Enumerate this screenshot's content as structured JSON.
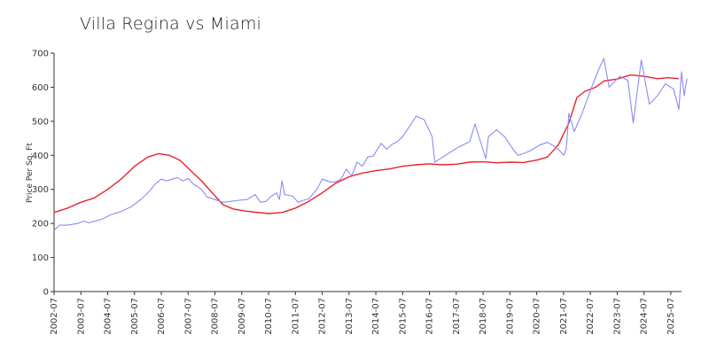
{
  "chart_data": {
    "type": "line",
    "title": "Villa Regina vs Miami",
    "xlabel": "",
    "ylabel": "Price Per Sq. Ft",
    "ylim": [
      0,
      700
    ],
    "yticks": [
      0,
      100,
      200,
      300,
      400,
      500,
      600,
      700
    ],
    "xlim": [
      2002.5,
      2025.9
    ],
    "xticks": [
      "2002-07",
      "2003-07",
      "2004-07",
      "2005-07",
      "2006-07",
      "2007-07",
      "2008-07",
      "2009-07",
      "2010-07",
      "2011-07",
      "2012-07",
      "2013-07",
      "2014-07",
      "2015-07",
      "2016-07",
      "2017-07",
      "2018-07",
      "2019-07",
      "2020-07",
      "2021-07",
      "2022-07",
      "2023-07",
      "2024-07",
      "2025-07"
    ],
    "grid": false,
    "legend": "none",
    "series": [
      {
        "name": "",
        "color": "#e8232b",
        "points": [
          [
            2002.5,
            232
          ],
          [
            2003.0,
            245
          ],
          [
            2003.5,
            262
          ],
          [
            2004.0,
            275
          ],
          [
            2004.5,
            300
          ],
          [
            2005.0,
            330
          ],
          [
            2005.5,
            368
          ],
          [
            2006.0,
            395
          ],
          [
            2006.4,
            405
          ],
          [
            2006.8,
            400
          ],
          [
            2007.2,
            385
          ],
          [
            2007.6,
            355
          ],
          [
            2008.0,
            325
          ],
          [
            2008.4,
            290
          ],
          [
            2008.8,
            255
          ],
          [
            2009.2,
            242
          ],
          [
            2009.6,
            237
          ],
          [
            2010.0,
            233
          ],
          [
            2010.5,
            229
          ],
          [
            2011.0,
            232
          ],
          [
            2011.5,
            245
          ],
          [
            2012.0,
            265
          ],
          [
            2012.5,
            290
          ],
          [
            2013.0,
            318
          ],
          [
            2013.5,
            337
          ],
          [
            2014.0,
            348
          ],
          [
            2014.5,
            355
          ],
          [
            2015.0,
            360
          ],
          [
            2015.5,
            368
          ],
          [
            2016.0,
            372
          ],
          [
            2016.5,
            375
          ],
          [
            2017.0,
            372
          ],
          [
            2017.5,
            374
          ],
          [
            2018.0,
            380
          ],
          [
            2018.5,
            381
          ],
          [
            2019.0,
            378
          ],
          [
            2019.5,
            380
          ],
          [
            2020.0,
            379
          ],
          [
            2020.5,
            386
          ],
          [
            2020.9,
            395
          ],
          [
            2021.3,
            430
          ],
          [
            2021.7,
            495
          ],
          [
            2022.0,
            570
          ],
          [
            2022.3,
            588
          ],
          [
            2022.7,
            600
          ],
          [
            2023.0,
            618
          ],
          [
            2023.5,
            624
          ],
          [
            2024.0,
            636
          ],
          [
            2024.5,
            632
          ],
          [
            2025.0,
            625
          ],
          [
            2025.4,
            628
          ],
          [
            2025.8,
            625
          ]
        ]
      },
      {
        "name": "",
        "color": "#8a8af5",
        "points": [
          [
            2002.5,
            180
          ],
          [
            2002.7,
            195
          ],
          [
            2003.0,
            195
          ],
          [
            2003.4,
            200
          ],
          [
            2003.6,
            207
          ],
          [
            2003.8,
            202
          ],
          [
            2004.0,
            206
          ],
          [
            2004.3,
            213
          ],
          [
            2004.6,
            225
          ],
          [
            2005.0,
            235
          ],
          [
            2005.4,
            250
          ],
          [
            2005.7,
            268
          ],
          [
            2006.0,
            290
          ],
          [
            2006.3,
            318
          ],
          [
            2006.5,
            330
          ],
          [
            2006.7,
            325
          ],
          [
            2006.9,
            330
          ],
          [
            2007.1,
            335
          ],
          [
            2007.3,
            325
          ],
          [
            2007.5,
            332
          ],
          [
            2007.7,
            315
          ],
          [
            2008.0,
            300
          ],
          [
            2008.2,
            278
          ],
          [
            2008.5,
            270
          ],
          [
            2008.8,
            262
          ],
          [
            2009.1,
            265
          ],
          [
            2009.4,
            268
          ],
          [
            2009.7,
            270
          ],
          [
            2010.0,
            285
          ],
          [
            2010.2,
            262
          ],
          [
            2010.4,
            265
          ],
          [
            2010.6,
            280
          ],
          [
            2010.8,
            290
          ],
          [
            2010.9,
            270
          ],
          [
            2011.0,
            325
          ],
          [
            2011.1,
            285
          ],
          [
            2011.4,
            280
          ],
          [
            2011.6,
            262
          ],
          [
            2011.8,
            268
          ],
          [
            2012.0,
            272
          ],
          [
            2012.3,
            300
          ],
          [
            2012.5,
            330
          ],
          [
            2012.8,
            322
          ],
          [
            2013.0,
            322
          ],
          [
            2013.2,
            330
          ],
          [
            2013.4,
            360
          ],
          [
            2013.6,
            340
          ],
          [
            2013.8,
            380
          ],
          [
            2014.0,
            368
          ],
          [
            2014.2,
            395
          ],
          [
            2014.4,
            398
          ],
          [
            2014.7,
            435
          ],
          [
            2014.9,
            418
          ],
          [
            2015.1,
            432
          ],
          [
            2015.3,
            440
          ],
          [
            2015.5,
            455
          ],
          [
            2015.8,
            490
          ],
          [
            2016.0,
            515
          ],
          [
            2016.3,
            505
          ],
          [
            2016.6,
            455
          ],
          [
            2016.7,
            380
          ],
          [
            2017.0,
            395
          ],
          [
            2017.3,
            410
          ],
          [
            2017.6,
            425
          ],
          [
            2018.0,
            440
          ],
          [
            2018.2,
            492
          ],
          [
            2018.6,
            390
          ],
          [
            2018.7,
            455
          ],
          [
            2019.0,
            475
          ],
          [
            2019.3,
            455
          ],
          [
            2019.6,
            420
          ],
          [
            2019.8,
            400
          ],
          [
            2020.0,
            405
          ],
          [
            2020.3,
            415
          ],
          [
            2020.6,
            430
          ],
          [
            2020.9,
            438
          ],
          [
            2021.2,
            425
          ],
          [
            2021.4,
            410
          ],
          [
            2021.5,
            400
          ],
          [
            2021.6,
            418
          ],
          [
            2021.7,
            523
          ],
          [
            2021.9,
            470
          ],
          [
            2022.2,
            525
          ],
          [
            2022.5,
            590
          ],
          [
            2022.8,
            650
          ],
          [
            2023.0,
            685
          ],
          [
            2023.2,
            600
          ],
          [
            2023.6,
            632
          ],
          [
            2023.9,
            620
          ],
          [
            2024.1,
            495
          ],
          [
            2024.4,
            680
          ],
          [
            2024.7,
            550
          ],
          [
            2025.0,
            575
          ],
          [
            2025.3,
            610
          ],
          [
            2025.6,
            595
          ],
          [
            2025.8,
            535
          ],
          [
            2025.9,
            645
          ],
          [
            2026.0,
            575
          ],
          [
            2026.1,
            625
          ]
        ]
      }
    ]
  }
}
